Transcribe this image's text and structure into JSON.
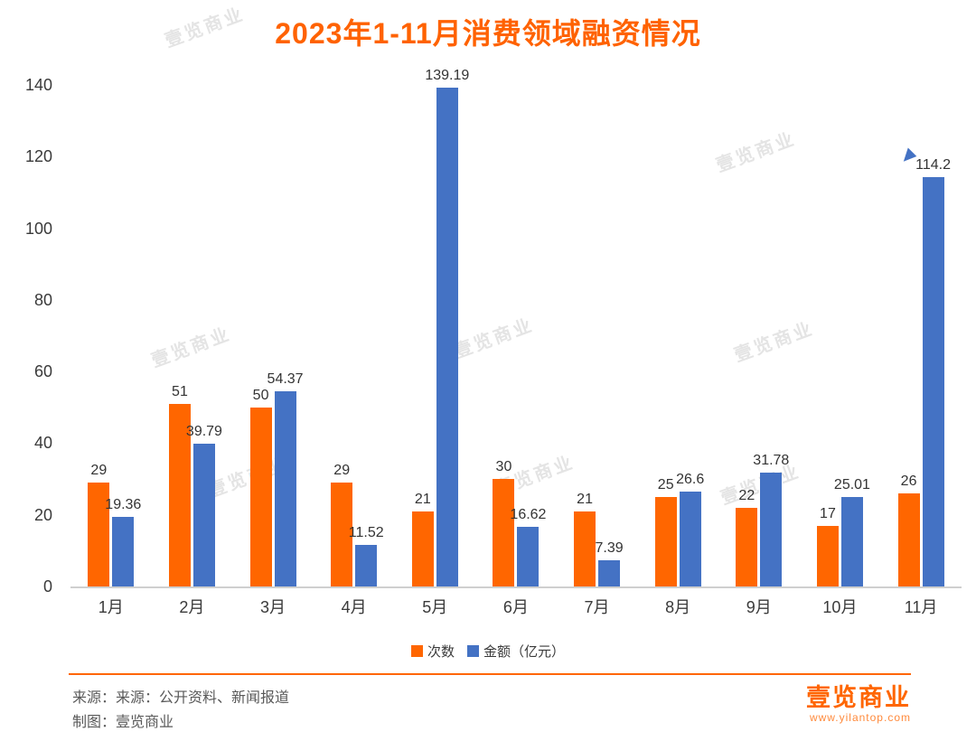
{
  "title": "2023年1-11月消费领域融资情况",
  "chart_data": {
    "type": "bar",
    "title": "2023年1-11月消费领域融资情况",
    "categories": [
      "1月",
      "2月",
      "3月",
      "4月",
      "5月",
      "6月",
      "7月",
      "8月",
      "9月",
      "10月",
      "11月"
    ],
    "series": [
      {
        "name": "次数",
        "color": "#FF6600",
        "values": [
          29,
          51,
          50,
          29,
          21,
          30,
          21,
          25,
          22,
          17,
          26
        ]
      },
      {
        "name": "金额（亿元）",
        "color": "#4472C4",
        "values": [
          19.36,
          39.79,
          54.37,
          11.52,
          139.19,
          16.62,
          7.39,
          26.6,
          31.78,
          25.01,
          114.2
        ]
      }
    ],
    "xlabel": "",
    "ylabel": "",
    "ylim": [
      0,
      140
    ],
    "yticks": [
      0,
      20,
      40,
      60,
      80,
      100,
      120,
      140
    ],
    "grid": false,
    "legend_position": "bottom"
  },
  "legend": {
    "items": [
      {
        "label": "次数",
        "color": "#FF6600"
      },
      {
        "label": "金额（亿元）",
        "color": "#4472C4"
      }
    ]
  },
  "footer": {
    "source_line": "来源：来源：公开资料、新闻报道",
    "credit_line": "制图：壹览商业"
  },
  "brand": {
    "logo_text": "壹览商业",
    "website": "www.yilantop.com"
  },
  "watermark": {
    "text": "壹览商业"
  },
  "colors": {
    "accent": "#FF6600",
    "bar_orange": "#FF6600",
    "bar_blue": "#4472C4"
  }
}
